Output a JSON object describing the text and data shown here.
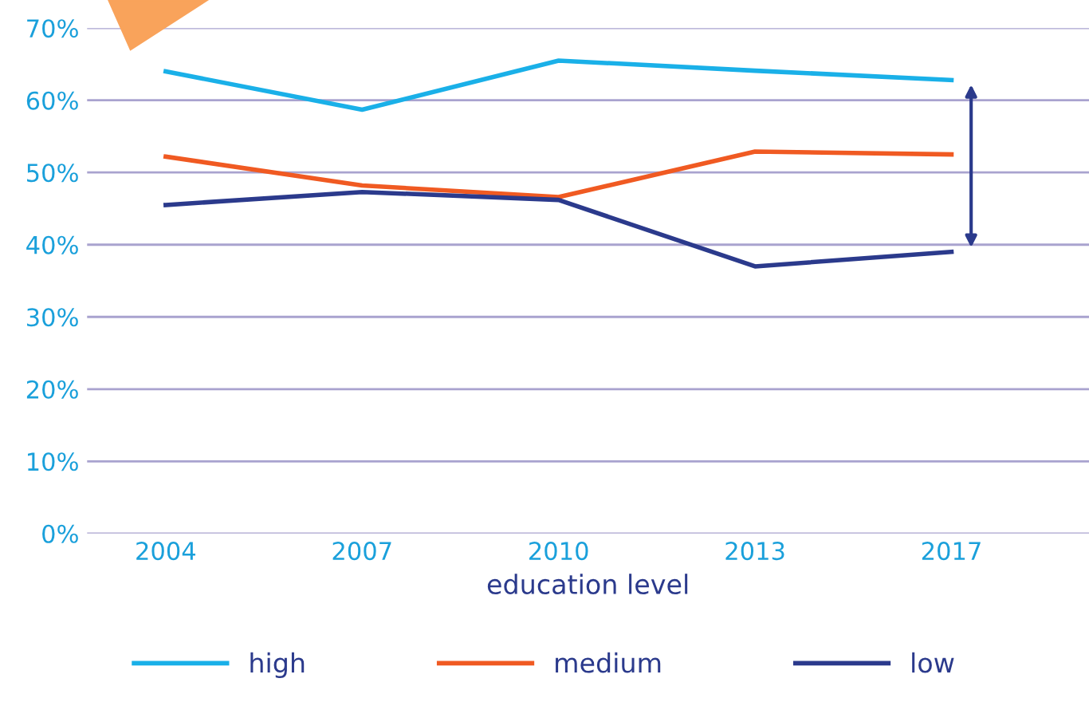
{
  "chart_data": {
    "type": "line",
    "xlabel": "education level",
    "categories": [
      "2004",
      "2007",
      "2010",
      "2013",
      "2017"
    ],
    "series": [
      {
        "name": "high",
        "color": "#1ab0e8",
        "values": [
          64,
          58.7,
          65.5,
          64.1,
          62.8
        ]
      },
      {
        "name": "medium",
        "color": "#f05a22",
        "values": [
          52.2,
          48.2,
          46.6,
          52.9,
          52.5
        ]
      },
      {
        "name": "low",
        "color": "#2b3a8c",
        "values": [
          45.5,
          47.3,
          46.2,
          37,
          39
        ]
      }
    ],
    "ylim": [
      0,
      70
    ],
    "yticks": [
      {
        "value": 0,
        "label": "0%"
      },
      {
        "value": 10,
        "label": "10%"
      },
      {
        "value": 20,
        "label": "20%"
      },
      {
        "value": 30,
        "label": "30%"
      },
      {
        "value": 40,
        "label": "40%"
      },
      {
        "value": 50,
        "label": "50%"
      },
      {
        "value": 60,
        "label": "60%"
      },
      {
        "value": 70,
        "label": "70%"
      }
    ],
    "grid": "y",
    "legend": "bottom",
    "marker": "none",
    "line_style": "solid"
  }
}
